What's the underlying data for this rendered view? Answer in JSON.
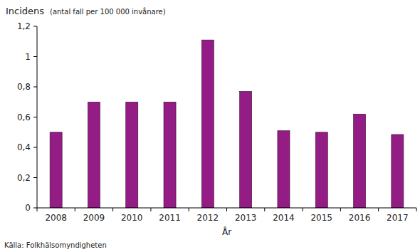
{
  "chart_data": {
    "type": "bar",
    "title": "Incidens",
    "subtitle": "(antal fall  per 100 000 invånare)",
    "x_label": "År",
    "annotations": [
      "Källa: Folkhälsomyndigheten"
    ],
    "categories": [
      "2008",
      "2009",
      "2010",
      "2011",
      "2012",
      "2013",
      "2014",
      "2015",
      "2016",
      "2017"
    ],
    "values": [
      0.5,
      0.7,
      0.7,
      0.7,
      1.11,
      0.77,
      0.51,
      0.5,
      0.62,
      0.485
    ],
    "color": "#931d84",
    "ylim": [
      0,
      1.2
    ],
    "yticks": [
      0,
      {
        "value": 0.2,
        "label": "0,2"
      },
      {
        "value": 0.4,
        "label": "0,4"
      },
      {
        "value": 0.6,
        "label": "0,6"
      },
      {
        "value": 0.8,
        "label": "0,8"
      },
      1,
      {
        "value": 1.2,
        "label": "1,2"
      }
    ],
    "grid": false
  }
}
